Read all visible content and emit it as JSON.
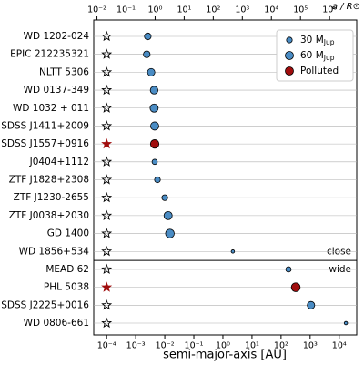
{
  "chart_data": {
    "type": "scatter",
    "categories": [
      "WD 1202-024",
      "EPIC 212235321",
      "NLTT 5306",
      "WD 0137-349",
      "WD 1032 + 011",
      "SDSS J1411+2009",
      "SDSS J1557+0916",
      "J0404+1112",
      "ZTF J1828+2308",
      "ZTF J1230-2655",
      "ZTF J0038+2030",
      "GD 1400",
      "WD 1856+534",
      "MEAD 62",
      "PHL 5038",
      "SDSS J2225+0016",
      "WD 0806-661"
    ],
    "values": [
      0.0026,
      0.0024,
      0.0034,
      0.0043,
      0.0043,
      0.0045,
      0.0045,
      0.0045,
      0.0056,
      0.01,
      0.013,
      0.015,
      2.2,
      180,
      320,
      1070,
      17000
    ],
    "mass": [
      40,
      40,
      50,
      53,
      60,
      60,
      65,
      25,
      30,
      30,
      60,
      68,
      10,
      25,
      70,
      50,
      10
    ],
    "polluted": [
      false,
      false,
      false,
      false,
      false,
      false,
      true,
      false,
      false,
      false,
      false,
      false,
      false,
      false,
      true,
      false,
      false
    ],
    "planet_color": "#4a8cc4",
    "polluted_color": "#a00d0d",
    "star_position": 0.0001,
    "sections": [
      {
        "label": "close",
        "count": 13
      },
      {
        "label": "wide",
        "count": 4
      }
    ],
    "legend": [
      {
        "label": "30 M",
        "sub": "Jup",
        "mass": 30
      },
      {
        "label": "60 M",
        "sub": "Jup",
        "mass": 60
      },
      {
        "label": "Polluted",
        "polluted": true
      }
    ],
    "xlabel": "semi-major-axis [AU]",
    "x2label": "a / R⊙",
    "log_x": true,
    "grid": true,
    "xlim": [
      3.6e-05,
      40000
    ],
    "xticks": [
      {
        "value": 0.0001,
        "label": "10⁻⁴"
      },
      {
        "value": 0.001,
        "label": "10⁻³"
      },
      {
        "value": 0.01,
        "label": "10⁻²"
      },
      {
        "value": 0.1,
        "label": "10⁻¹"
      },
      {
        "value": 1,
        "label": "10⁰"
      },
      {
        "value": 10,
        "label": "10¹"
      },
      {
        "value": 100,
        "label": "10²"
      },
      {
        "value": 1000,
        "label": "10³"
      },
      {
        "value": 10000,
        "label": "10⁴"
      }
    ],
    "x2lim": [
      0.00774,
      8600000
    ],
    "x2ticks": [
      {
        "value": 0.01,
        "label": "10⁻²"
      },
      {
        "value": 0.1,
        "label": "10⁻¹"
      },
      {
        "value": 1,
        "label": "10⁰"
      },
      {
        "value": 10,
        "label": "10¹"
      },
      {
        "value": 100,
        "label": "10²"
      },
      {
        "value": 1000,
        "label": "10³"
      },
      {
        "value": 10000,
        "label": "10⁴"
      },
      {
        "value": 100000,
        "label": "10⁵"
      },
      {
        "value": 1000000,
        "label": "10⁶"
      }
    ]
  }
}
